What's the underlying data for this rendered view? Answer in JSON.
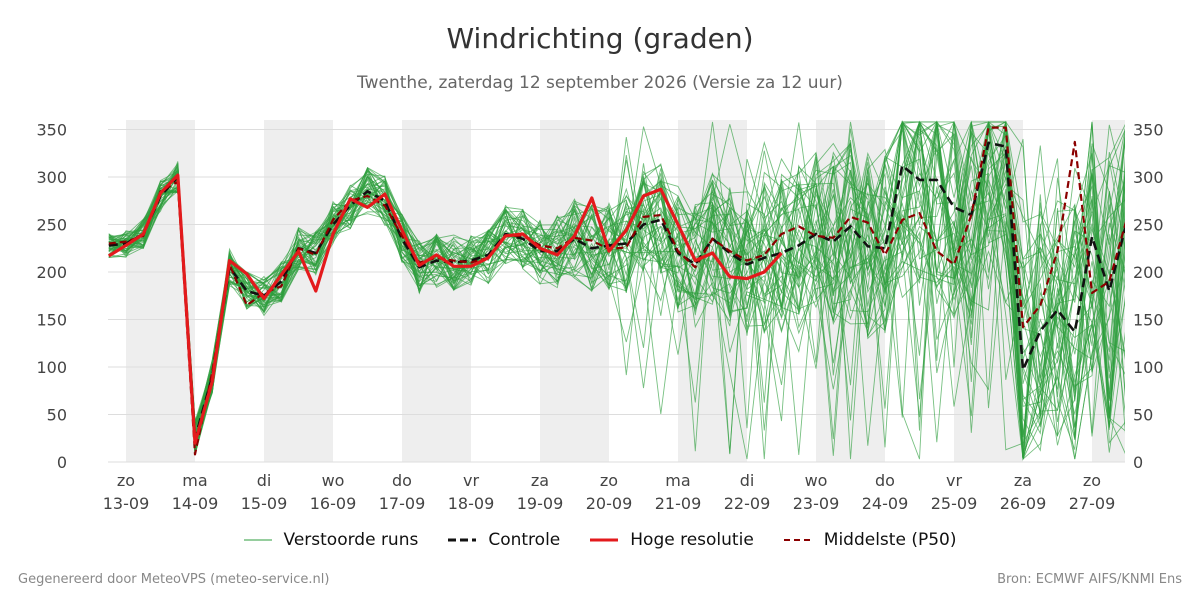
{
  "header": {
    "title": "Windrichting (graden)",
    "subtitle": "Twenthe, zaterdag 12 september 2026 (Versie za 12 uur)"
  },
  "footer": {
    "left": "Gegenereerd door MeteoVPS (meteo-service.nl)",
    "right": "Bron: ECMWF AIFS/KNMI Ens"
  },
  "legend": [
    {
      "label": "Verstoorde runs",
      "color": "#2e9e3e",
      "style": "thin"
    },
    {
      "label": "Controle",
      "color": "#111111",
      "style": "dashed"
    },
    {
      "label": "Hoge resolutie",
      "color": "#e31a1c",
      "style": "solid"
    },
    {
      "label": "Middelste (P50)",
      "color": "#8b0000",
      "style": "dashed"
    }
  ],
  "chart_data": {
    "type": "line",
    "title": "Windrichting (graden)",
    "x_unit": "days",
    "xlim": [
      -0.25,
      14.5
    ],
    "ylim": [
      0,
      360
    ],
    "yticks": [
      0,
      50,
      100,
      150,
      200,
      250,
      300,
      350
    ],
    "grid": true,
    "legend_position": "bottom",
    "x_tick_labels": [
      {
        "day": "zo",
        "date": "13-09"
      },
      {
        "day": "ma",
        "date": "14-09"
      },
      {
        "day": "di",
        "date": "15-09"
      },
      {
        "day": "wo",
        "date": "16-09"
      },
      {
        "day": "do",
        "date": "17-09"
      },
      {
        "day": "vr",
        "date": "18-09"
      },
      {
        "day": "za",
        "date": "19-09"
      },
      {
        "day": "zo",
        "date": "20-09"
      },
      {
        "day": "ma",
        "date": "21-09"
      },
      {
        "day": "di",
        "date": "22-09"
      },
      {
        "day": "wo",
        "date": "23-09"
      },
      {
        "day": "do",
        "date": "24-09"
      },
      {
        "day": "vr",
        "date": "25-09"
      },
      {
        "day": "za",
        "date": "26-09"
      },
      {
        "day": "zo",
        "date": "27-09"
      }
    ],
    "shaded_days": [
      0,
      2,
      4,
      6,
      8,
      10,
      12,
      14
    ],
    "colors": {
      "ensemble": "#2e9e3e",
      "control": "#111111",
      "hres": "#e31a1c",
      "median": "#8b0000",
      "shade": "#eeeeee",
      "grid": "#dddddd"
    },
    "x": [
      -0.25,
      0.0,
      0.25,
      0.5,
      0.75,
      1.0,
      1.25,
      1.5,
      1.75,
      2.0,
      2.25,
      2.5,
      2.75,
      3.0,
      3.25,
      3.5,
      3.75,
      4.0,
      4.25,
      4.5,
      4.75,
      5.0,
      5.25,
      5.5,
      5.75,
      6.0,
      6.25,
      6.5,
      6.75,
      7.0,
      7.25,
      7.5,
      7.75,
      8.0,
      8.25,
      8.5,
      8.75,
      9.0,
      9.25,
      9.5,
      9.75,
      10.0,
      10.25,
      10.5,
      10.75,
      11.0,
      11.25,
      11.5,
      11.75,
      12.0,
      12.25,
      12.5,
      12.75,
      13.0,
      13.25,
      13.5,
      13.75,
      14.0,
      14.25,
      14.5
    ],
    "series": [
      {
        "name": "Hoge resolutie",
        "role": "hres",
        "values": [
          217,
          228,
          240,
          283,
          302,
          20,
          85,
          212,
          198,
          172,
          197,
          222,
          180,
          240,
          277,
          268,
          282,
          244,
          207,
          218,
          206,
          206,
          215,
          238,
          240,
          225,
          218,
          238,
          278,
          222,
          244,
          280,
          287,
          250,
          212,
          220,
          195,
          193,
          200,
          220,
          null,
          null,
          null,
          null,
          null,
          null,
          null,
          null,
          null,
          null,
          null,
          null,
          null,
          null,
          null,
          null,
          null,
          null,
          null,
          null
        ]
      },
      {
        "name": "Controle",
        "role": "control",
        "values": [
          228,
          230,
          240,
          280,
          300,
          25,
          90,
          205,
          180,
          175,
          190,
          225,
          220,
          250,
          270,
          285,
          275,
          235,
          205,
          212,
          210,
          212,
          218,
          240,
          235,
          222,
          222,
          235,
          225,
          228,
          230,
          250,
          255,
          220,
          208,
          235,
          220,
          208,
          215,
          220,
          228,
          240,
          232,
          248,
          227,
          225,
          312,
          297,
          297,
          268,
          260,
          336,
          332,
          97,
          138,
          160,
          137,
          237,
          180,
          252
        ]
      },
      {
        "name": "Middelste (P50)",
        "role": "median",
        "values": [
          230,
          232,
          238,
          285,
          295,
          8,
          95,
          208,
          165,
          178,
          185,
          225,
          218,
          255,
          275,
          280,
          270,
          238,
          210,
          215,
          212,
          210,
          215,
          238,
          238,
          228,
          225,
          236,
          233,
          224,
          226,
          258,
          260,
          222,
          205,
          235,
          222,
          212,
          218,
          240,
          248,
          238,
          236,
          258,
          252,
          218,
          255,
          262,
          222,
          208,
          260,
          352,
          352,
          142,
          165,
          222,
          337,
          178,
          190,
          255
        ]
      }
    ]
  }
}
